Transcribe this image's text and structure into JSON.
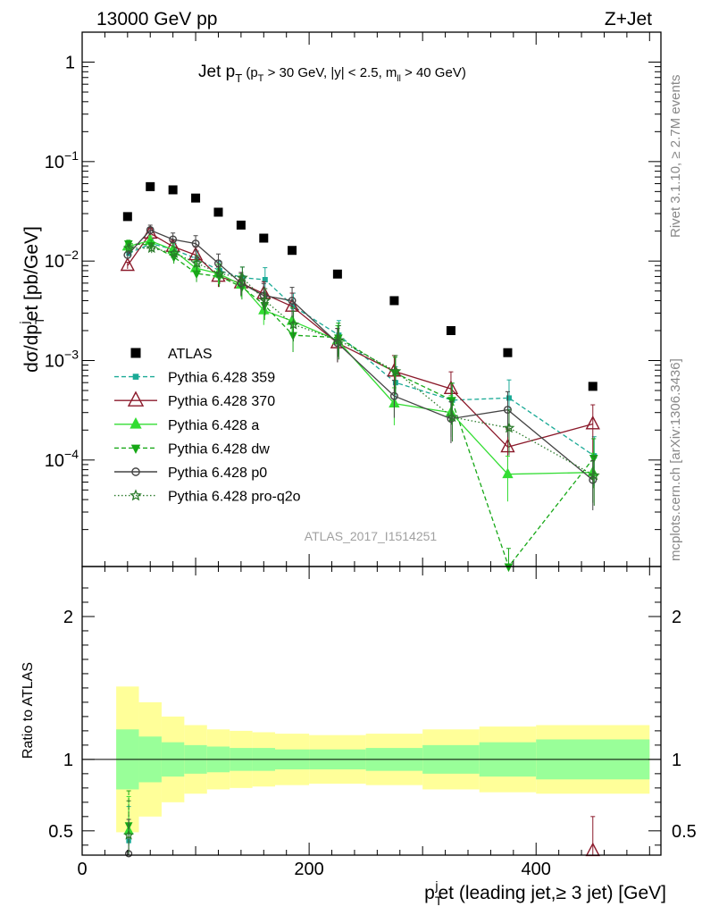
{
  "header": {
    "left": "13000 GeV pp",
    "right": "Z+Jet"
  },
  "plot_title": {
    "main": "Jet p",
    "main_sub": "T",
    "cut_open": " (p",
    "cut_sub": "T",
    "cut_mid": " > 30 GeV, |y| < 2.5, m",
    "cut_sub2": "ll",
    "cut_end": " > 40 GeV)"
  },
  "y_label": {
    "part1": "dσ/dp",
    "sub1": "T",
    "sup1": "j",
    "part2": "et [pb/GeV]"
  },
  "x_label": {
    "part1": "p",
    "sub1": "T",
    "sup1": "j",
    "part2": "et (leading jet,≥ 3 jet) [GeV]"
  },
  "ratio_label": "Ratio to ATLAS",
  "side_right_top": "Rivet 3.1.10, ≥ 2.7M events",
  "side_right_bottom": "mcplots.cern.ch [arXiv:1306.3436]",
  "analysis_id": "ATLAS_2017_I1514251",
  "y_ticks_main": [
    "1",
    "10",
    "10",
    "10",
    "10"
  ],
  "y_tick_exps": [
    "",
    "−1",
    "−2",
    "−3",
    "−4"
  ],
  "y_ticks_ratio": [
    "2",
    "1",
    "0.5"
  ],
  "x_ticks": [
    "0",
    "200",
    "400"
  ],
  "legend": [
    {
      "label": "ATLAS",
      "color": "#000000",
      "marker": "filled-square"
    },
    {
      "label": "Pythia 6.428 359",
      "color": "#1aaa96",
      "marker": "small-square"
    },
    {
      "label": "Pythia 6.428 370",
      "color": "#8b1a2b",
      "marker": "open-triangle"
    },
    {
      "label": "Pythia 6.428 a",
      "color": "#33dd33",
      "marker": "filled-triangle"
    },
    {
      "label": "Pythia 6.428 dw",
      "color": "#17a817",
      "marker": "filled-triangle-down"
    },
    {
      "label": "Pythia 6.428 p0",
      "color": "#444444",
      "marker": "open-circle"
    },
    {
      "label": "Pythia 6.428 pro-q2o",
      "color": "#2a7a2a",
      "marker": "star"
    }
  ],
  "chart_data": {
    "type": "scatter",
    "xlabel": "pTjet (leading jet,≥ 3 jet) [GeV]",
    "ylabel": "dσ/dpTjet [pb/GeV]",
    "xlim": [
      0,
      510
    ],
    "ylim": [
      8.5e-06,
      2
    ],
    "yscale": "log",
    "ratio_ylim": [
      0.33,
      2.35
    ],
    "x_edges": [
      30,
      50,
      70,
      90,
      110,
      130,
      150,
      170,
      200,
      250,
      300,
      350,
      400,
      500
    ],
    "x": [
      40,
      60,
      80,
      100,
      120,
      140,
      160,
      185,
      225,
      275,
      325,
      375,
      450
    ],
    "series": [
      {
        "name": "ATLAS",
        "values": [
          0.028,
          0.056,
          0.052,
          0.043,
          0.031,
          0.023,
          0.017,
          0.0128,
          0.0074,
          0.004,
          0.002,
          0.0012,
          0.00055
        ]
      },
      {
        "name": "Pythia 6.428 359",
        "values": [
          0.012,
          0.015,
          0.013,
          0.0105,
          0.008,
          0.0068,
          0.0065,
          0.0035,
          0.0018,
          0.0006,
          0.0004,
          0.00042,
          0.00011
        ]
      },
      {
        "name": "Pythia 6.428 370",
        "values": [
          0.009,
          0.019,
          0.014,
          0.0115,
          0.007,
          0.006,
          0.0047,
          0.0035,
          0.0015,
          0.00078,
          0.00052,
          0.000135,
          0.00023
        ]
      },
      {
        "name": "Pythia 6.428 a",
        "values": [
          0.014,
          0.016,
          0.013,
          0.0085,
          0.0075,
          0.0058,
          0.0032,
          0.0025,
          0.0016,
          0.00037,
          0.0003,
          7.2e-05,
          7.5e-05
        ]
      },
      {
        "name": "Pythia 6.428 dw",
        "values": [
          0.015,
          0.0145,
          0.011,
          0.0075,
          0.007,
          0.0055,
          0.0036,
          0.0018,
          0.0017,
          0.00075,
          0.0004,
          8.5e-06,
          0.000105
        ]
      },
      {
        "name": "Pythia 6.428 p0",
        "values": [
          0.0115,
          0.0205,
          0.0165,
          0.015,
          0.0095,
          0.006,
          0.0045,
          0.004,
          0.0015,
          0.00044,
          0.00026,
          0.00032,
          6.3e-05
        ]
      },
      {
        "name": "Pythia 6.428 pro-q2o",
        "values": [
          0.0135,
          0.0135,
          0.012,
          0.0095,
          0.0075,
          0.0068,
          0.004,
          0.0023,
          0.0016,
          0.00078,
          0.00027,
          0.00021,
          7e-05
        ]
      }
    ],
    "ratio_bands": {
      "green_half_width": [
        0.21,
        0.16,
        0.12,
        0.1,
        0.09,
        0.08,
        0.08,
        0.07,
        0.07,
        0.08,
        0.1,
        0.12,
        0.14
      ],
      "yellow_half_width": [
        0.51,
        0.4,
        0.3,
        0.24,
        0.21,
        0.2,
        0.19,
        0.18,
        0.17,
        0.18,
        0.21,
        0.23,
        0.24
      ]
    },
    "ratio_points": [
      {
        "series": "Pythia 6.428 359",
        "x": 41,
        "y": 0.43
      },
      {
        "series": "Pythia 6.428 370",
        "x": 450,
        "y": 0.36
      },
      {
        "series": "Pythia 6.428 a",
        "x": 41,
        "y": 0.5
      },
      {
        "series": "Pythia 6.428 dw",
        "x": 41,
        "y": 0.54
      },
      {
        "series": "Pythia 6.428 p0",
        "x": 41,
        "y": 0.34
      },
      {
        "series": "Pythia 6.428 pro-q2o",
        "x": 41,
        "y": 0.47
      }
    ]
  }
}
